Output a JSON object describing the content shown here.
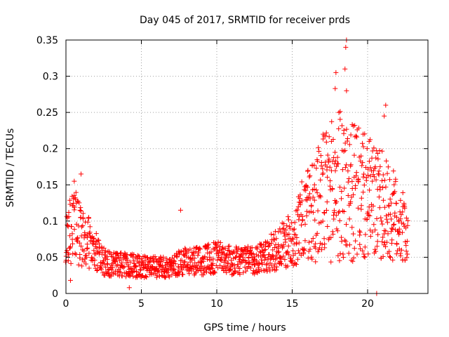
{
  "chart_data": {
    "type": "scatter",
    "title": "Day 045 of 2017, SRMTID for receiver prds",
    "xlabel": "GPS time / hours",
    "ylabel": "SRMTID / TECUs",
    "xlim": [
      0,
      24
    ],
    "ylim": [
      0,
      0.35
    ],
    "xticks": [
      0,
      5,
      10,
      15,
      20
    ],
    "xtick_labels": [
      "0",
      "5",
      "10",
      "15",
      "20"
    ],
    "yticks": [
      0,
      0.05,
      0.1,
      0.15,
      0.2,
      0.25,
      0.3,
      0.35
    ],
    "ytick_labels": [
      "0",
      "0.05",
      "0.1",
      "0.15",
      "0.2",
      "0.25",
      "0.3",
      "0.35"
    ],
    "grid": true,
    "marker": "plus",
    "color": "#ff0000",
    "series": [
      {
        "name": "SRMTID",
        "x_start": 0.0,
        "x_step": 0.15,
        "envelope": [
          [
            0.0,
            0.07
          ],
          [
            0.5,
            0.1
          ],
          [
            1.0,
            0.08
          ],
          [
            1.5,
            0.07
          ],
          [
            2.0,
            0.06
          ],
          [
            2.5,
            0.045
          ],
          [
            3.0,
            0.04
          ],
          [
            4.0,
            0.04
          ],
          [
            5.0,
            0.037
          ],
          [
            6.0,
            0.036
          ],
          [
            7.0,
            0.038
          ],
          [
            8.0,
            0.045
          ],
          [
            9.0,
            0.045
          ],
          [
            10.0,
            0.05
          ],
          [
            11.0,
            0.045
          ],
          [
            12.0,
            0.045
          ],
          [
            13.0,
            0.05
          ],
          [
            14.0,
            0.06
          ],
          [
            15.0,
            0.075
          ],
          [
            16.0,
            0.11
          ],
          [
            17.0,
            0.13
          ],
          [
            18.0,
            0.15
          ],
          [
            19.0,
            0.14
          ],
          [
            20.0,
            0.13
          ],
          [
            21.0,
            0.12
          ],
          [
            22.0,
            0.1
          ],
          [
            22.7,
            0.08
          ]
        ],
        "highlights": [
          {
            "x": 18.6,
            "y": 0.35
          },
          {
            "x": 18.55,
            "y": 0.34
          },
          {
            "x": 18.5,
            "y": 0.31
          },
          {
            "x": 17.9,
            "y": 0.305
          },
          {
            "x": 17.85,
            "y": 0.283
          },
          {
            "x": 18.6,
            "y": 0.28
          },
          {
            "x": 21.2,
            "y": 0.26
          },
          {
            "x": 21.1,
            "y": 0.245
          },
          {
            "x": 17.05,
            "y": 0.22
          },
          {
            "x": 19.7,
            "y": 0.22
          },
          {
            "x": 20.1,
            "y": 0.21
          },
          {
            "x": 1.0,
            "y": 0.165
          },
          {
            "x": 0.55,
            "y": 0.155
          },
          {
            "x": 7.6,
            "y": 0.115
          },
          {
            "x": 20.6,
            "y": 0.0
          },
          {
            "x": 0.3,
            "y": 0.018
          },
          {
            "x": 4.2,
            "y": 0.008
          }
        ]
      }
    ]
  }
}
